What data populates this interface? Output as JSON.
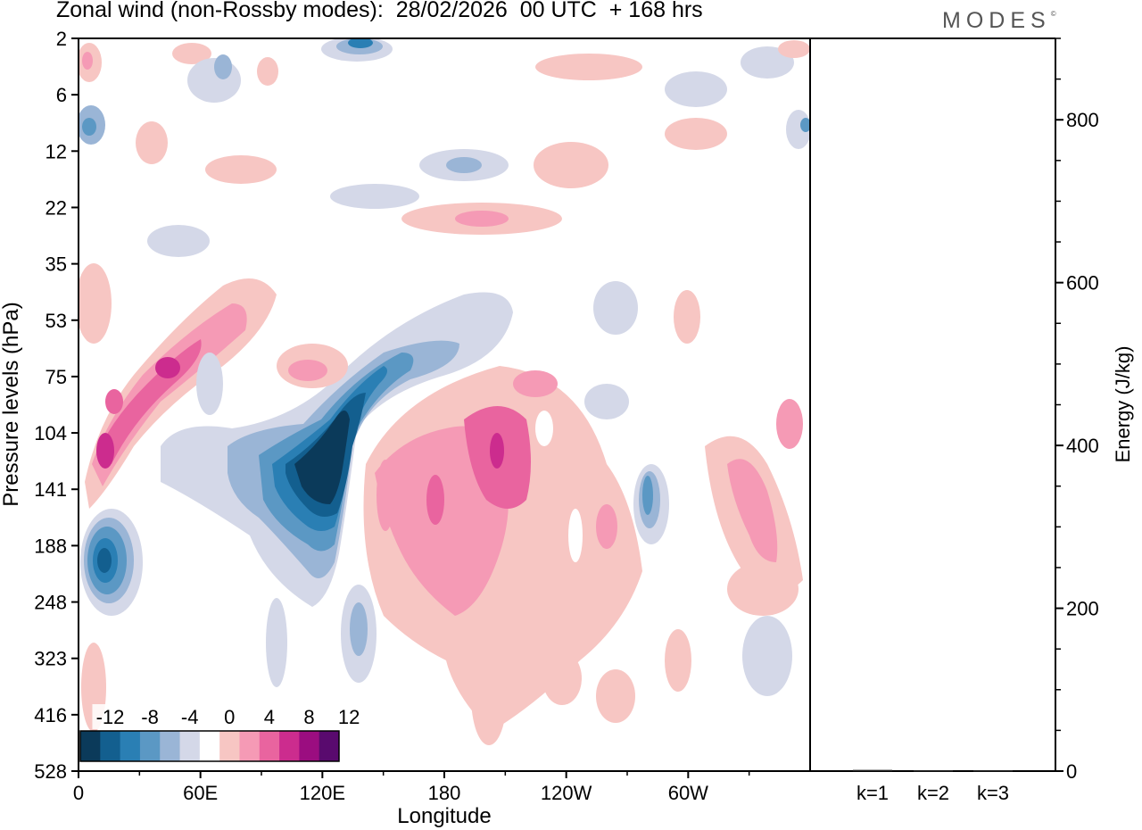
{
  "header": {
    "title": "Zonal wind (non-Rossby modes):  28/02/2026  00 UTC  + 168 hrs",
    "logo": "MODES",
    "logo_mark": "©"
  },
  "chart_data": [
    {
      "type": "heatmap",
      "title": "Zonal wind (non-Rossby modes):  28/02/2026  00 UTC  + 168 hrs",
      "xlabel": "Longitude",
      "ylabel": "Pressure levels (hPa)",
      "x_ticks": [
        {
          "lon": 0,
          "label": "0"
        },
        {
          "lon": 60,
          "label": "60E"
        },
        {
          "lon": 120,
          "label": "120E"
        },
        {
          "lon": 180,
          "label": "180"
        },
        {
          "lon": 240,
          "label": "120W"
        },
        {
          "lon": 300,
          "label": "60W"
        }
      ],
      "xlim": [
        0,
        360
      ],
      "y_ticks": [
        "2",
        "6",
        "12",
        "22",
        "35",
        "53",
        "75",
        "104",
        "141",
        "188",
        "248",
        "323",
        "416",
        "528"
      ],
      "colorbar": {
        "labels": [
          "-12",
          "-8",
          "-4",
          "0",
          "4",
          "8",
          "12"
        ],
        "colors": [
          "#0b3a5a",
          "#135f8f",
          "#2a7fb4",
          "#5b98c4",
          "#9ab5d6",
          "#d4d8e8",
          "#ffffff",
          "#f7c6c3",
          "#f59ab5",
          "#e9649f",
          "#cc2c8e",
          "#9b0d80",
          "#590a6e"
        ]
      },
      "features": [
        {
          "name": "negative-core-120E",
          "lon": 118,
          "level_index": 7.8,
          "value": -14
        },
        {
          "name": "negative-cell-10E",
          "lon": 13,
          "level_index": 9.2,
          "value": -10
        },
        {
          "name": "negative-cell-82W",
          "lon": 278,
          "level_index": 8.3,
          "value": -6
        },
        {
          "name": "negative-top-130E",
          "lon": 132,
          "level_index": 0.1,
          "value": -8
        },
        {
          "name": "positive-band-west",
          "lon": 14,
          "level_index": 7.6,
          "value": 10
        },
        {
          "name": "positive-cell-170E",
          "lon": 170,
          "level_index": 8.3,
          "value": 8
        },
        {
          "name": "positive-cell-160W",
          "lon": 200,
          "level_index": 7.4,
          "value": 10
        }
      ]
    },
    {
      "type": "bar",
      "categories": [
        "k=1",
        "k=2",
        "k=3"
      ],
      "values": [
        1.5,
        1,
        1
      ],
      "ylabel": "Energy (J/kg)",
      "ylim": [
        0,
        900
      ],
      "y_ticks": [
        0,
        200,
        400,
        600,
        800
      ]
    }
  ]
}
